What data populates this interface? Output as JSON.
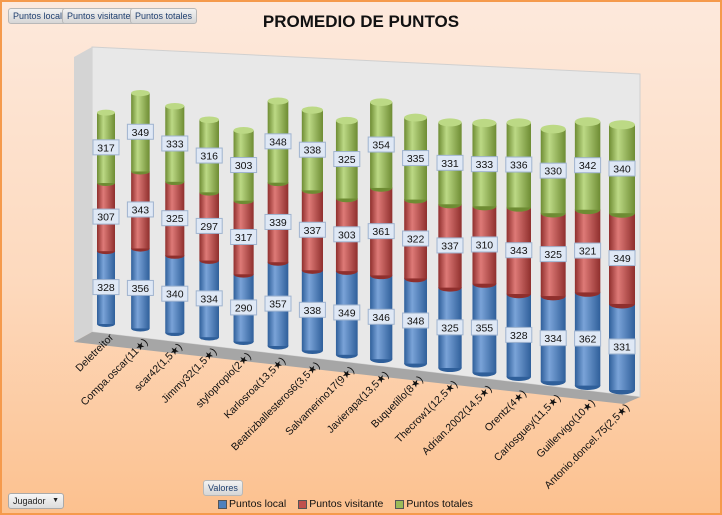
{
  "field_buttons": [
    "Puntos local",
    "Puntos visitante",
    "Puntos totales"
  ],
  "values_button": "Valores",
  "row_filter": {
    "label": "Jugador",
    "icon": "dropdown-arrow-icon"
  },
  "chart_data": {
    "type": "bar",
    "subtype": "3d-stacked-cylinder",
    "title": "PROMEDIO DE PUNTOS",
    "categories": [
      "Deletreitor",
      "Compa.oscar(11★)",
      "scar42(1,5★)",
      "Jimmy32(1,5★)",
      "stylopropio(2★)",
      "Karlosroa(13,5★)",
      "Beatrizballesteros6(3,5★)",
      "Salvamerino17(9★)",
      "Javierapa(13,5★)",
      "Buquetillo(8★)",
      "Thecrow1(12,5★)",
      "Adrian.2002(14,5★)",
      "Orentz(4★)",
      "Carlosguey(11,5★)",
      "Guillervigo(10★)",
      "Antonio.doncel.75(2,5★)"
    ],
    "series": [
      {
        "name": "Puntos local",
        "color": "#4f81bd",
        "values": [
          328,
          356,
          340,
          334,
          290,
          357,
          338,
          349,
          346,
          348,
          325,
          355,
          328,
          334,
          362,
          331
        ]
      },
      {
        "name": "Puntos visitante",
        "color": "#c0504d",
        "values": [
          307,
          343,
          325,
          297,
          317,
          339,
          337,
          303,
          361,
          322,
          337,
          310,
          343,
          325,
          321,
          349
        ]
      },
      {
        "name": "Puntos totales",
        "color": "#9bbb59",
        "values": [
          317,
          349,
          333,
          316,
          303,
          348,
          338,
          325,
          354,
          335,
          331,
          333,
          336,
          330,
          342,
          340
        ]
      }
    ],
    "legend": "bottom"
  }
}
